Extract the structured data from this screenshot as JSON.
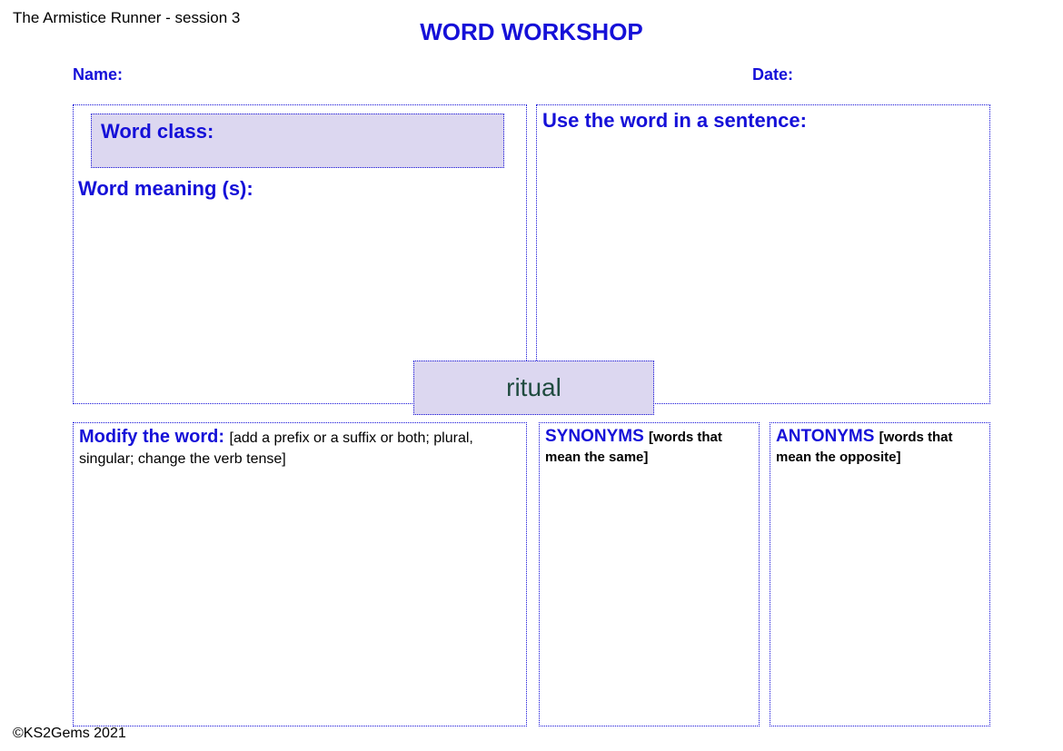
{
  "header": {
    "session": "The Armistice Runner - session 3",
    "title": "WORD WORKSHOP",
    "name_label": "Name:",
    "date_label": "Date:"
  },
  "boxes": {
    "word_class_label": "Word class:",
    "word_meaning_label": "Word meaning (s):",
    "use_sentence_label": "Use the word in a sentence:",
    "center_word": "ritual",
    "modify_label": "Modify the word: ",
    "modify_sub": "[add a prefix or a suffix or both; plural, singular; change the verb tense]",
    "synonyms_label": "SYNONYMS ",
    "synonyms_sub": "[words that mean the same]",
    "antonyms_label": "ANTONYMS ",
    "antonyms_sub": "[words that mean the opposite]"
  },
  "footer": "©KS2Gems 2021",
  "style": {
    "accent_color": "#1510d8",
    "panel_bg": "#dcd7f0",
    "word_color": "#1f4b3f",
    "background": "#ffffff",
    "border_style": "dotted"
  }
}
